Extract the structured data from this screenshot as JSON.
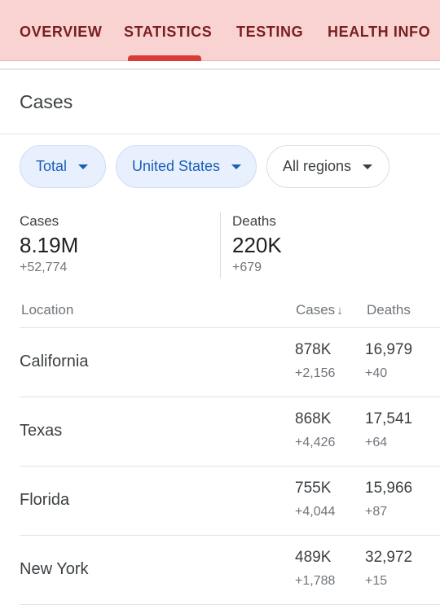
{
  "tabs": [
    {
      "label": "OVERVIEW"
    },
    {
      "label": "STATISTICS"
    },
    {
      "label": "TESTING"
    },
    {
      "label": "HEALTH INFO"
    }
  ],
  "active_tab": "STATISTICS",
  "section": {
    "title": "Cases"
  },
  "filters": {
    "period": "Total",
    "country": "United States",
    "region": "All regions"
  },
  "summary": {
    "cases": {
      "label": "Cases",
      "value": "8.19M",
      "delta": "+52,774"
    },
    "deaths": {
      "label": "Deaths",
      "value": "220K",
      "delta": "+679"
    }
  },
  "table": {
    "headers": {
      "location": "Location",
      "cases": "Cases",
      "deaths": "Deaths"
    },
    "sort": {
      "column": "cases",
      "direction": "descending",
      "icon": "arrow-down-icon"
    },
    "rows": [
      {
        "location": "California",
        "cases": "878K",
        "cases_delta": "+2,156",
        "deaths": "16,979",
        "deaths_delta": "+40"
      },
      {
        "location": "Texas",
        "cases": "868K",
        "cases_delta": "+4,426",
        "deaths": "17,541",
        "deaths_delta": "+64"
      },
      {
        "location": "Florida",
        "cases": "755K",
        "cases_delta": "+4,044",
        "deaths": "15,966",
        "deaths_delta": "+87"
      },
      {
        "location": "New York",
        "cases": "489K",
        "cases_delta": "+1,788",
        "deaths": "32,972",
        "deaths_delta": "+15"
      }
    ]
  },
  "colors": {
    "tab_bar": "#f9d3d2",
    "tab_text": "#7a1f1f",
    "tab_indicator": "#d93b36",
    "chip_active_bg": "#e8f0fe",
    "chip_active_text": "#1a5fb8"
  }
}
